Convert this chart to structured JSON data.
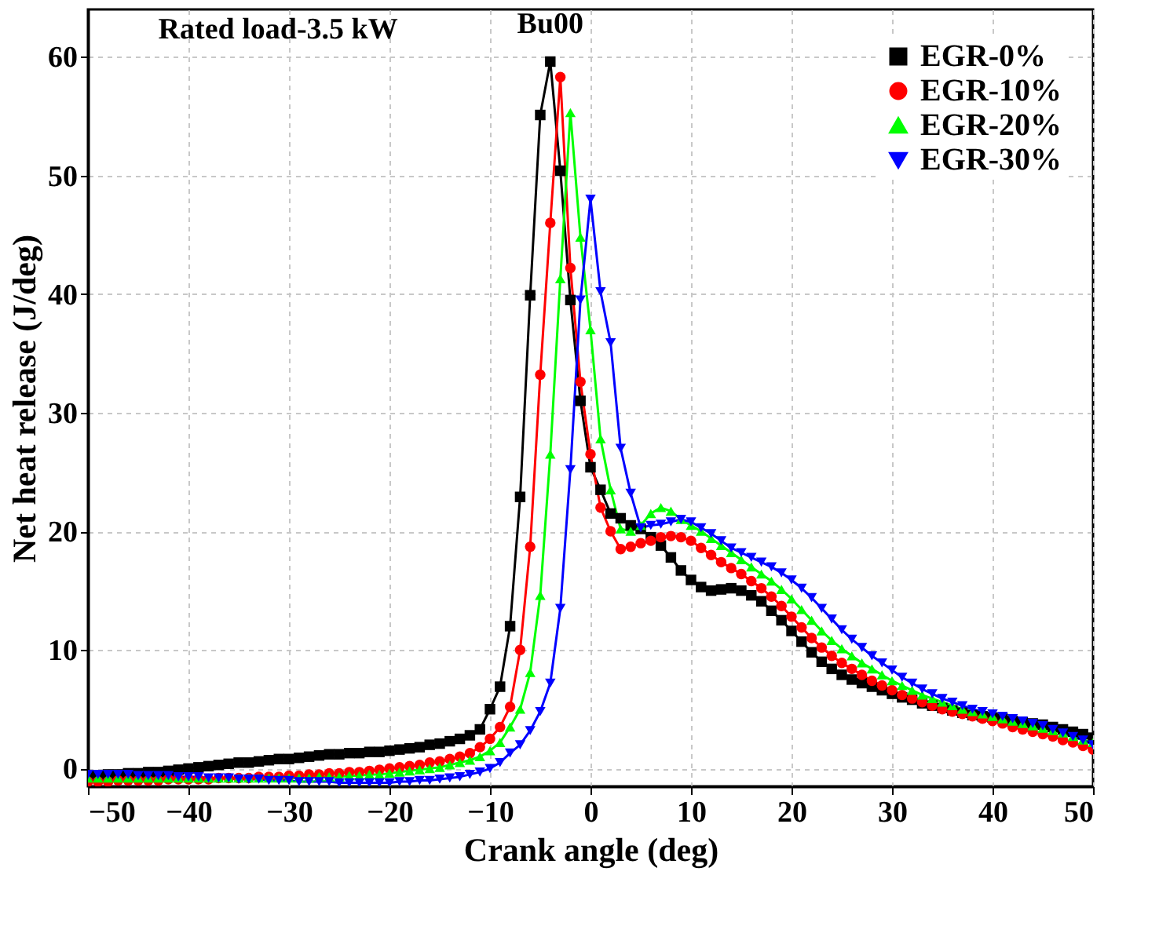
{
  "chart_data": {
    "type": "line",
    "xlabel": "Crank angle (deg)",
    "ylabel": "Net heat release (J/deg)",
    "annotations": [
      "Rated load-3.5 kW",
      "Bu00"
    ],
    "x": [
      -50,
      -49,
      -48,
      -47,
      -46,
      -45,
      -44,
      -43,
      -42,
      -41,
      -40,
      -39,
      -38,
      -37,
      -36,
      -35,
      -34,
      -33,
      -32,
      -31,
      -30,
      -29,
      -28,
      -27,
      -26,
      -25,
      -24,
      -23,
      -22,
      -21,
      -20,
      -19,
      -18,
      -17,
      -16,
      -15,
      -14,
      -13,
      -12,
      -11,
      -10,
      -9,
      -8,
      -7,
      -6,
      -5,
      -4,
      -3,
      -2,
      -1,
      0,
      1,
      2,
      3,
      4,
      5,
      6,
      7,
      8,
      9,
      10,
      11,
      12,
      13,
      14,
      15,
      16,
      17,
      18,
      19,
      20,
      21,
      22,
      23,
      24,
      25,
      26,
      27,
      28,
      29,
      30,
      31,
      32,
      33,
      34,
      35,
      36,
      37,
      38,
      39,
      40,
      41,
      42,
      43,
      44,
      45,
      46,
      47,
      48,
      49,
      50
    ],
    "series": [
      {
        "name": "EGR-0%",
        "color": "#000000",
        "marker": "square",
        "values": [
          -0.6,
          -0.6,
          -0.5,
          -0.5,
          -0.4,
          -0.4,
          -0.3,
          -0.3,
          -0.2,
          -0.1,
          0,
          0.1,
          0.2,
          0.3,
          0.4,
          0.5,
          0.5,
          0.6,
          0.7,
          0.8,
          0.8,
          0.9,
          1.0,
          1.1,
          1.2,
          1.2,
          1.3,
          1.3,
          1.4,
          1.4,
          1.5,
          1.6,
          1.7,
          1.8,
          2.0,
          2.1,
          2.3,
          2.5,
          2.8,
          3.3,
          5.0,
          6.9,
          12.0,
          22.9,
          39.9,
          55.1,
          59.6,
          50.4,
          39.5,
          31.0,
          25.4,
          23.5,
          21.5,
          21.1,
          20.5,
          20.2,
          19.5,
          18.8,
          17.8,
          16.7,
          15.9,
          15.3,
          15.0,
          15.1,
          15.2,
          15.0,
          14.6,
          14.1,
          13.3,
          12.5,
          11.6,
          10.7,
          9.8,
          9.0,
          8.4,
          7.9,
          7.5,
          7.2,
          6.9,
          6.6,
          6.3,
          6.0,
          5.8,
          5.5,
          5.3,
          5.1,
          4.9,
          4.7,
          4.5,
          4.4,
          4.3,
          4.2,
          4.0,
          3.9,
          3.8,
          3.7,
          3.5,
          3.3,
          3.1,
          2.9,
          2.6
        ]
      },
      {
        "name": "EGR-10%",
        "color": "#ff0000",
        "marker": "circle",
        "values": [
          -1.1,
          -1.1,
          -1.1,
          -1.0,
          -1.0,
          -1.0,
          -1.0,
          -1.0,
          -0.9,
          -0.9,
          -0.9,
          -0.9,
          -0.9,
          -0.8,
          -0.8,
          -0.8,
          -0.8,
          -0.7,
          -0.7,
          -0.7,
          -0.6,
          -0.6,
          -0.5,
          -0.5,
          -0.4,
          -0.4,
          -0.3,
          -0.3,
          -0.2,
          -0.1,
          0,
          0.1,
          0.2,
          0.3,
          0.5,
          0.6,
          0.8,
          1.0,
          1.3,
          1.8,
          2.5,
          3.5,
          5.2,
          10.0,
          18.7,
          33.2,
          46.0,
          58.3,
          42.2,
          32.6,
          26.5,
          22.0,
          20.0,
          18.5,
          18.7,
          19.0,
          19.2,
          19.5,
          19.6,
          19.5,
          19.2,
          18.6,
          18.0,
          17.4,
          16.9,
          16.4,
          15.8,
          15.2,
          14.5,
          13.7,
          12.8,
          11.9,
          11.0,
          10.2,
          9.5,
          8.9,
          8.4,
          7.9,
          7.4,
          7.0,
          6.6,
          6.2,
          5.9,
          5.6,
          5.3,
          5.0,
          4.8,
          4.6,
          4.4,
          4.2,
          4.0,
          3.8,
          3.5,
          3.3,
          3.1,
          2.9,
          2.7,
          2.4,
          2.2,
          1.9,
          1.6
        ]
      },
      {
        "name": "EGR-20%",
        "color": "#00ff00",
        "marker": "triangle",
        "values": [
          -0.8,
          -0.8,
          -0.8,
          -0.8,
          -0.8,
          -0.8,
          -0.8,
          -0.8,
          -0.8,
          -0.8,
          -0.8,
          -0.8,
          -0.8,
          -0.8,
          -0.8,
          -0.8,
          -0.8,
          -0.8,
          -0.8,
          -0.8,
          -0.8,
          -0.8,
          -0.8,
          -0.7,
          -0.7,
          -0.7,
          -0.6,
          -0.6,
          -0.5,
          -0.5,
          -0.4,
          -0.3,
          -0.2,
          -0.1,
          0,
          0.1,
          0.3,
          0.5,
          0.7,
          1.0,
          1.5,
          2.2,
          3.5,
          5.0,
          8.1,
          14.6,
          26.5,
          41.3,
          55.3,
          44.8,
          37.0,
          27.8,
          23.5,
          20.2,
          20.0,
          20.5,
          21.5,
          22.0,
          21.7,
          21.0,
          20.5,
          20.0,
          19.4,
          18.8,
          18.2,
          17.6,
          17.0,
          16.4,
          15.8,
          15.1,
          14.3,
          13.4,
          12.5,
          11.6,
          10.8,
          10.1,
          9.5,
          8.9,
          8.4,
          7.9,
          7.4,
          7.0,
          6.6,
          6.2,
          5.9,
          5.6,
          5.3,
          5.0,
          4.8,
          4.6,
          4.4,
          4.2,
          4.0,
          3.8,
          3.6,
          3.4,
          3.2,
          3.0,
          2.7,
          2.4,
          2.2
        ]
      },
      {
        "name": "EGR-30%",
        "color": "#0000ff",
        "marker": "triangle-down",
        "values": [
          -0.5,
          -0.5,
          -0.5,
          -0.5,
          -0.5,
          -0.6,
          -0.6,
          -0.6,
          -0.6,
          -0.7,
          -0.7,
          -0.7,
          -0.8,
          -0.8,
          -0.8,
          -0.9,
          -0.9,
          -0.9,
          -1.0,
          -1.0,
          -1.0,
          -1.1,
          -1.1,
          -1.1,
          -1.1,
          -1.2,
          -1.2,
          -1.2,
          -1.2,
          -1.2,
          -1.2,
          -1.1,
          -1.1,
          -1.0,
          -1.0,
          -0.9,
          -0.8,
          -0.7,
          -0.5,
          -0.3,
          0,
          0.5,
          1.3,
          2.0,
          3.2,
          4.8,
          7.2,
          13.5,
          25.2,
          39.5,
          48.0,
          40.2,
          35.9,
          27.0,
          23.2,
          20.3,
          20.5,
          20.6,
          20.8,
          21.0,
          20.8,
          20.3,
          19.8,
          19.2,
          18.6,
          18.2,
          17.8,
          17.4,
          17.0,
          16.5,
          15.9,
          15.2,
          14.4,
          13.5,
          12.6,
          11.7,
          10.9,
          10.2,
          9.5,
          8.9,
          8.3,
          7.7,
          7.2,
          6.7,
          6.3,
          5.9,
          5.6,
          5.3,
          5.0,
          4.8,
          4.6,
          4.4,
          4.2,
          4.0,
          3.8,
          3.6,
          3.3,
          3.0,
          2.7,
          2.4,
          2.0
        ]
      }
    ],
    "xlim": [
      -50,
      50
    ],
    "xticks": [
      -50,
      -40,
      -30,
      -20,
      -10,
      0,
      10,
      20,
      30,
      40,
      50
    ],
    "ylim": [
      -1.5,
      64
    ],
    "yticks": [
      0,
      10,
      20,
      30,
      40,
      50,
      60
    ],
    "grid": true,
    "legend": "top right",
    "line_style": "solid"
  }
}
